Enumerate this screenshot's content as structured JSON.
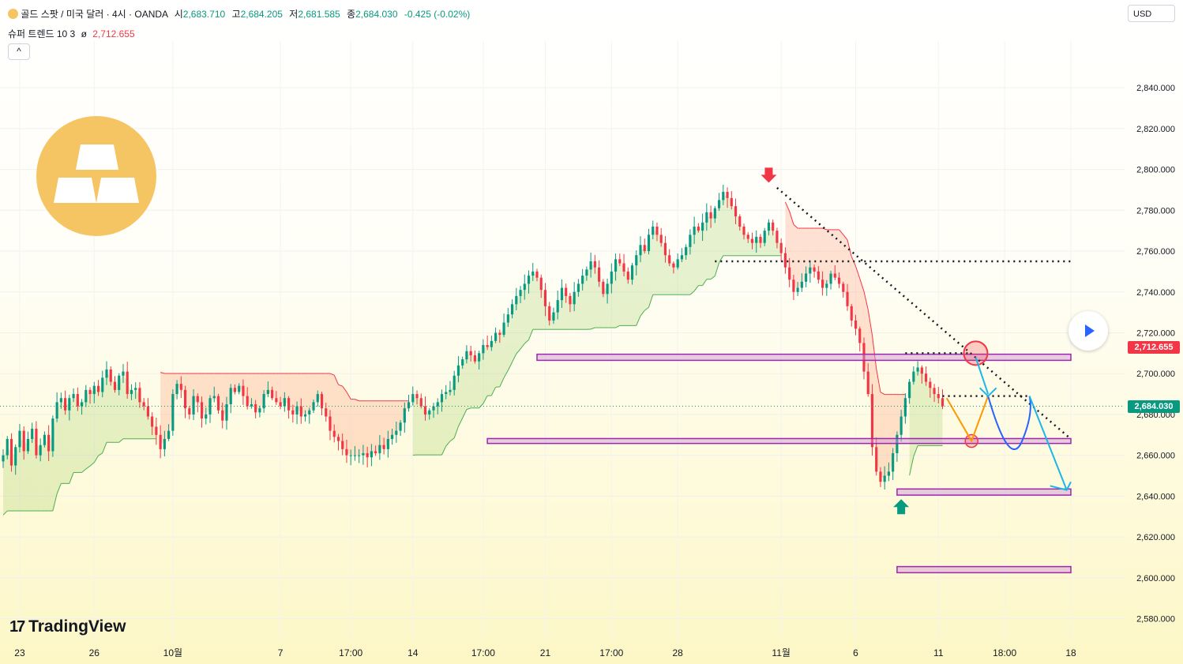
{
  "legend": {
    "symbol_icon": "gold-coin-icon",
    "title": "골드 스팟 / 미국 달러 · 4시 · OANDA",
    "open_label": "시",
    "open": "2,683.710",
    "high_label": "고",
    "high": "2,684.205",
    "low_label": "저",
    "low": "2,681.585",
    "close_label": "종",
    "close": "2,684.030",
    "change": "-0.425 (-0.02%)"
  },
  "indicator": {
    "name": "슈퍼 트렌드 10 3",
    "icon": "eye-slash-icon",
    "value": "2,712.655"
  },
  "collapse_button": "^",
  "currency": "USD",
  "logo": "TradingView",
  "price_labels": {
    "supertrend": "2,712.655",
    "last": "2,684.030"
  },
  "colors": {
    "up": "#089981",
    "down": "#f23645",
    "zone": "#9c27b0",
    "arrow_cyan": "#1cb6e8",
    "arrow_blue": "#2962ff",
    "arrow_orange": "#ff9800"
  },
  "chart_data": {
    "type": "candlestick",
    "symbol": "XAUUSD",
    "timeframe": "4시",
    "y_ticks": [
      2840,
      2820,
      2800,
      2780,
      2760,
      2740,
      2720,
      2700,
      2680,
      2660,
      2640,
      2620,
      2600,
      2580
    ],
    "y_tick_labels": [
      "2,840.000",
      "2,820.000",
      "2,800.000",
      "2,780.000",
      "2,760.000",
      "2,740.000",
      "2,720.000",
      "2,700.000",
      "2,680.000",
      "2,660.000",
      "2,640.000",
      "2,620.000",
      "2,600.000",
      "2,580.000"
    ],
    "ylim": [
      2569,
      2859
    ],
    "x_ticks": [
      {
        "label": "23",
        "bar": 4
      },
      {
        "label": "26",
        "bar": 22
      },
      {
        "label": "10월",
        "bar": 41
      },
      {
        "label": "7",
        "bar": 67
      },
      {
        "label": "17:00",
        "bar": 84
      },
      {
        "label": "14",
        "bar": 99
      },
      {
        "label": "17:00",
        "bar": 116
      },
      {
        "label": "21",
        "bar": 131
      },
      {
        "label": "17:00",
        "bar": 147
      },
      {
        "label": "28",
        "bar": 163
      },
      {
        "label": "11월",
        "bar": 188
      },
      {
        "label": "6",
        "bar": 206
      },
      {
        "label": "11",
        "bar": 226
      },
      {
        "label": "18:00",
        "bar": 242
      },
      {
        "label": "18",
        "bar": 258
      }
    ],
    "x_max": 266,
    "last_price": 2684.03,
    "supertrend_value": 2712.655,
    "candles_close": [
      2660,
      2668,
      2655,
      2664,
      2672,
      2662,
      2668,
      2673,
      2660,
      2665,
      2670,
      2662,
      2678,
      2686,
      2688,
      2682,
      2688,
      2690,
      2684,
      2686,
      2692,
      2690,
      2694,
      2691,
      2698,
      2702,
      2696,
      2692,
      2699,
      2701,
      2690,
      2692,
      2693,
      2686,
      2684,
      2679,
      2674,
      2670,
      2663,
      2668,
      2672,
      2690,
      2695,
      2692,
      2683,
      2680,
      2689,
      2686,
      2678,
      2680,
      2688,
      2689,
      2682,
      2677,
      2685,
      2693,
      2691,
      2694,
      2689,
      2684,
      2685,
      2681,
      2683,
      2690,
      2692,
      2688,
      2686,
      2684,
      2688,
      2682,
      2680,
      2684,
      2679,
      2680,
      2682,
      2686,
      2690,
      2683,
      2679,
      2672,
      2669,
      2667,
      2663,
      2660,
      2660,
      2660,
      2660,
      2661,
      2659,
      2662,
      2661,
      2665,
      2663,
      2668,
      2670,
      2672,
      2676,
      2683,
      2686,
      2690,
      2688,
      2684,
      2680,
      2682,
      2684,
      2686,
      2690,
      2691,
      2692,
      2699,
      2704,
      2707,
      2711,
      2709,
      2706,
      2710,
      2714,
      2713,
      2716,
      2720,
      2719,
      2725,
      2729,
      2734,
      2738,
      2741,
      2744,
      2748,
      2750,
      2747,
      2741,
      2733,
      2726,
      2730,
      2736,
      2742,
      2738,
      2734,
      2740,
      2744,
      2748,
      2751,
      2755,
      2752,
      2745,
      2739,
      2744,
      2750,
      2756,
      2754,
      2750,
      2746,
      2753,
      2758,
      2763,
      2760,
      2768,
      2772,
      2768,
      2764,
      2758,
      2754,
      2752,
      2756,
      2758,
      2762,
      2768,
      2772,
      2770,
      2774,
      2779,
      2776,
      2781,
      2785,
      2789,
      2786,
      2782,
      2777,
      2772,
      2768,
      2766,
      2764,
      2767,
      2764,
      2770,
      2774,
      2770,
      2764,
      2759,
      2752,
      2746,
      2740,
      2742,
      2745,
      2749,
      2752,
      2750,
      2746,
      2742,
      2744,
      2749,
      2747,
      2744,
      2740,
      2733,
      2726,
      2722,
      2715,
      2701,
      2690,
      2664,
      2652,
      2647,
      2650,
      2652,
      2661,
      2670,
      2679,
      2688,
      2696,
      2701,
      2703,
      2700,
      2696,
      2693,
      2690,
      2688,
      2684
    ],
    "candles": "OHLC series for XAUUSD 4H approximated from the screenshot; closes listed above in chronological order",
    "supertrend": {
      "period": 10,
      "multiplier": 3,
      "last": 2712.655
    },
    "zones": [
      {
        "name": "resistance-zone",
        "low": 2706.5,
        "high": 2709.5
      },
      {
        "name": "support-zone-1",
        "low": 2665.8,
        "high": 2668.2
      },
      {
        "name": "support-zone-2",
        "low": 2640.5,
        "high": 2643.5
      },
      {
        "name": "support-zone-3",
        "low": 2602.5,
        "high": 2605.5
      }
    ],
    "horizontal_lines": [
      2755,
      2689
    ],
    "trendline": {
      "from": {
        "bar": 187,
        "price": 2791
      },
      "to": {
        "bar": 258,
        "price": 2668
      }
    },
    "markers": [
      {
        "type": "arrow-down",
        "bar": 185,
        "price": 2797
      },
      {
        "type": "arrow-up",
        "bar": 217,
        "price": 2635
      }
    ]
  }
}
